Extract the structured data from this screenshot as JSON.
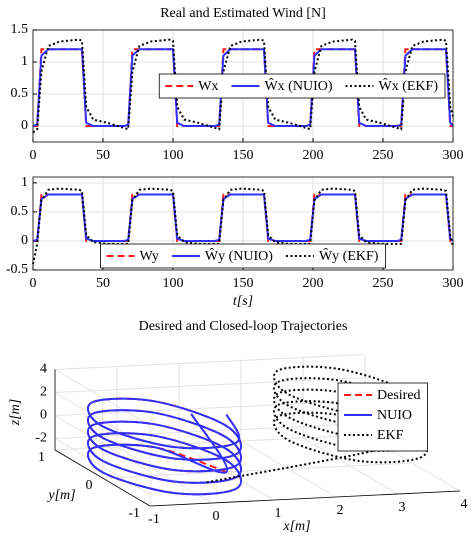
{
  "chart_data": [
    {
      "type": "line",
      "title": "Real and Estimated Wind [N]",
      "x": [
        0,
        3,
        6,
        11,
        19,
        33,
        35,
        38,
        43,
        53,
        65,
        68,
        71,
        76,
        84,
        98,
        100,
        103,
        108,
        118,
        130,
        133,
        136,
        141,
        149,
        163,
        165,
        168,
        173,
        183,
        195,
        198,
        201,
        206,
        214,
        228,
        230,
        233,
        238,
        248,
        260,
        263,
        266,
        271,
        279,
        293,
        295,
        298,
        300
      ],
      "series": [
        {
          "name": "Wx",
          "color": "#ff1a1a",
          "linestyle": "dashed",
          "values": [
            0,
            0,
            1.2,
            1.2,
            1.2,
            1.2,
            1.2,
            0,
            0,
            0,
            0,
            0,
            1.2,
            1.2,
            1.2,
            1.2,
            1.2,
            0,
            0,
            0,
            0,
            0,
            1.2,
            1.2,
            1.2,
            1.2,
            1.2,
            0,
            0,
            0,
            0,
            0,
            1.2,
            1.2,
            1.2,
            1.2,
            1.2,
            0,
            0,
            0,
            0,
            0,
            1.2,
            1.2,
            1.2,
            1.2,
            1.2,
            0,
            0
          ]
        },
        {
          "name": "Ŵx (NUIO)",
          "color": "#3030ff",
          "linestyle": "solid",
          "values": [
            0,
            0.02,
            1.1,
            1.2,
            1.2,
            1.2,
            1.2,
            0.05,
            0,
            0,
            0,
            0.02,
            1.1,
            1.2,
            1.2,
            1.2,
            1.2,
            0.05,
            0,
            0,
            0,
            0.02,
            1.1,
            1.2,
            1.2,
            1.2,
            1.2,
            0.05,
            0,
            0,
            0,
            0.02,
            1.1,
            1.2,
            1.2,
            1.2,
            1.2,
            0.05,
            0,
            0,
            0,
            0.02,
            1.1,
            1.2,
            1.2,
            1.2,
            1.2,
            0.05,
            0
          ]
        },
        {
          "name": "Ŵx (EKF)",
          "color": "#000000",
          "linestyle": "dotted",
          "values": [
            -0.1,
            -0.05,
            0.85,
            1.25,
            1.32,
            1.35,
            1.33,
            0.3,
            0.1,
            0.05,
            -0.03,
            -0.05,
            0.85,
            1.25,
            1.32,
            1.35,
            1.33,
            0.3,
            0.1,
            0.05,
            -0.03,
            -0.05,
            0.85,
            1.25,
            1.32,
            1.35,
            1.33,
            0.3,
            0.1,
            0.05,
            -0.03,
            -0.05,
            0.85,
            1.25,
            1.32,
            1.35,
            1.33,
            0.3,
            0.1,
            0.05,
            -0.03,
            -0.05,
            0.85,
            1.25,
            1.32,
            1.35,
            1.33,
            0.3,
            0.15
          ]
        }
      ],
      "xlim": [
        0,
        300
      ],
      "xticks": [
        0,
        50,
        100,
        150,
        200,
        250,
        300
      ],
      "ylim": [
        -0.25,
        1.5
      ],
      "yticks": [
        0,
        0.5,
        1,
        1.5
      ],
      "grid": true,
      "legend": "center right"
    },
    {
      "type": "line",
      "xlabel": "t[s]",
      "x": [
        0,
        3,
        6,
        11,
        19,
        33,
        35,
        38,
        43,
        53,
        65,
        68,
        71,
        76,
        84,
        98,
        100,
        103,
        108,
        118,
        130,
        133,
        136,
        141,
        149,
        163,
        165,
        168,
        173,
        183,
        195,
        198,
        201,
        206,
        214,
        228,
        230,
        233,
        238,
        248,
        260,
        263,
        266,
        271,
        279,
        293,
        295,
        298,
        300
      ],
      "series": [
        {
          "name": "Wy",
          "color": "#ff1a1a",
          "linestyle": "dashed",
          "values": [
            0,
            0,
            0.8,
            0.8,
            0.8,
            0.8,
            0.8,
            0,
            0,
            0,
            0,
            0,
            0.8,
            0.8,
            0.8,
            0.8,
            0.8,
            0,
            0,
            0,
            0,
            0,
            0.8,
            0.8,
            0.8,
            0.8,
            0.8,
            0,
            0,
            0,
            0,
            0,
            0.8,
            0.8,
            0.8,
            0.8,
            0.8,
            0,
            0,
            0,
            0,
            0,
            0.8,
            0.8,
            0.8,
            0.8,
            0.8,
            0,
            0
          ]
        },
        {
          "name": "Ŵy (NUIO)",
          "color": "#3030ff",
          "linestyle": "solid",
          "values": [
            0,
            0.02,
            0.72,
            0.8,
            0.8,
            0.8,
            0.8,
            0.04,
            0,
            0,
            0,
            0.02,
            0.72,
            0.8,
            0.8,
            0.8,
            0.8,
            0.04,
            0,
            0,
            0,
            0.02,
            0.72,
            0.8,
            0.8,
            0.8,
            0.8,
            0.04,
            0,
            0,
            0,
            0.02,
            0.72,
            0.8,
            0.8,
            0.8,
            0.8,
            0.04,
            0,
            0,
            0,
            0.02,
            0.72,
            0.8,
            0.8,
            0.8,
            0.8,
            0.04,
            0
          ]
        },
        {
          "name": "Ŵy (EKF)",
          "color": "#000000",
          "linestyle": "dotted",
          "values": [
            -0.4,
            -0.05,
            0.7,
            0.88,
            0.9,
            0.88,
            0.86,
            0.1,
            -0.02,
            -0.05,
            -0.05,
            -0.05,
            0.7,
            0.88,
            0.9,
            0.88,
            0.86,
            0.1,
            -0.02,
            -0.05,
            -0.05,
            -0.05,
            0.7,
            0.88,
            0.9,
            0.88,
            0.86,
            0.1,
            -0.02,
            -0.05,
            -0.05,
            -0.05,
            0.7,
            0.88,
            0.9,
            0.88,
            0.86,
            0.1,
            -0.02,
            -0.05,
            -0.05,
            -0.05,
            0.7,
            0.88,
            0.9,
            0.88,
            0.86,
            0.1,
            -0.1
          ]
        }
      ],
      "xlim": [
        0,
        300
      ],
      "xticks": [
        0,
        50,
        100,
        150,
        200,
        250,
        300
      ],
      "ylim": [
        -0.5,
        1.1
      ],
      "yticks": [
        -0.5,
        0,
        0.5,
        1
      ],
      "grid": true,
      "legend": "lower center"
    },
    {
      "type": "line3d",
      "title": "Desired and Closed-loop Trajectories",
      "xlabel": "x[m]",
      "ylabel": "y[m]",
      "zlabel": "z[m]",
      "series": [
        {
          "name": "Desired",
          "color": "#ff1a1a",
          "linestyle": "dashed",
          "x": [
            1,
            0.5,
            -0.5,
            -1,
            -0.5,
            0.5,
            1,
            0.5,
            -0.5,
            -1,
            -0.5,
            0.5,
            1,
            0.5,
            -0.5,
            -1,
            -0.5,
            0.5,
            1,
            0.5,
            -0.5,
            -1,
            -0.5,
            0.5,
            1,
            0.5,
            -0.5,
            -1,
            -0.5,
            0.5,
            1
          ],
          "y": [
            0,
            0.87,
            0.87,
            0,
            -0.87,
            -0.87,
            0,
            0.87,
            0.87,
            0,
            -0.87,
            -0.87,
            0,
            0.87,
            0.87,
            0,
            -0.87,
            -0.87,
            0,
            0.87,
            0.87,
            0,
            -0.87,
            -0.87,
            0,
            0.87,
            0.87,
            0,
            -0.87,
            -0.87,
            0
          ],
          "z": [
            -3,
            -2.83,
            -2.67,
            -2.5,
            -2.33,
            -2.17,
            -2,
            -1.83,
            -1.67,
            -1.5,
            -1.33,
            -1.17,
            -1,
            -0.83,
            -0.67,
            -0.5,
            -0.33,
            -0.17,
            0,
            0.17,
            0.33,
            0.5,
            0.67,
            0.83,
            1,
            1.17,
            1.33,
            1.5,
            1.67,
            1.83,
            2
          ]
        },
        {
          "name": "NUIO",
          "color": "#3030ff",
          "linestyle": "solid",
          "x": [
            0.2,
            1,
            0.5,
            -0.5,
            -1,
            -0.5,
            0.5,
            1,
            0.5,
            -0.5,
            -1,
            -0.5,
            0.5,
            1,
            0.5,
            -0.5,
            -1,
            -0.5,
            0.5,
            1,
            0.5,
            -0.5,
            -1,
            -0.5,
            0.5,
            1,
            0.5,
            -0.5,
            -1,
            -0.5,
            0.5,
            1
          ],
          "y": [
            -0.3,
            0,
            0.87,
            0.87,
            0,
            -0.87,
            -0.87,
            0,
            0.87,
            0.87,
            0,
            -0.87,
            -0.87,
            0,
            0.87,
            0.87,
            0,
            -0.87,
            -0.87,
            0,
            0.87,
            0.87,
            0,
            -0.87,
            -0.87,
            0,
            0.87,
            0.87,
            0,
            -0.87,
            -0.87,
            0
          ],
          "z": [
            3,
            -3,
            -2.83,
            -2.67,
            -2.5,
            -2.33,
            -2.17,
            -2,
            -1.83,
            -1.67,
            -1.5,
            -1.33,
            -1.17,
            -1,
            -0.83,
            -0.67,
            -0.5,
            -0.33,
            -0.17,
            0,
            0.17,
            0.33,
            0.5,
            0.67,
            0.83,
            1,
            1.17,
            1.33,
            1.5,
            1.67,
            1.83,
            2
          ]
        },
        {
          "name": "EKF",
          "color": "#000000",
          "linestyle": "dotted",
          "x": [
            0.3,
            4,
            3.5,
            2.5,
            2,
            2.5,
            3.5,
            4,
            3.5,
            2.5,
            2,
            2.5,
            3.5,
            4,
            3.5,
            2.5,
            2,
            2.5,
            3.5,
            4,
            3.5,
            2.5,
            2,
            2.5,
            3.5,
            4,
            3.5,
            2.5,
            2,
            2.5,
            3.5,
            4
          ],
          "y": [
            -0.5,
            0,
            0.87,
            0.87,
            0,
            -0.87,
            -0.87,
            0,
            0.87,
            0.87,
            0,
            -0.87,
            -0.87,
            0,
            0.87,
            0.87,
            0,
            -0.87,
            -0.87,
            0,
            0.87,
            0.87,
            0,
            -0.87,
            -0.87,
            0,
            0.87,
            0.87,
            0,
            -0.87,
            -0.87,
            0
          ],
          "z": [
            -2.5,
            -1,
            -0.83,
            -0.67,
            -0.5,
            -0.33,
            -0.17,
            0,
            0.17,
            0.33,
            0.5,
            0.67,
            0.83,
            1,
            1.17,
            1.33,
            1.5,
            1.67,
            1.83,
            2,
            2.17,
            2.33,
            2.5,
            2.67,
            2.83,
            3,
            3.17,
            3.33,
            3.5,
            3.67,
            3.83,
            4
          ]
        }
      ],
      "xlim": [
        -1,
        4
      ],
      "xticks": [
        -1,
        0,
        1,
        2,
        3,
        4
      ],
      "ylim": [
        -1,
        1
      ],
      "yticks": [
        -1,
        0,
        1
      ],
      "zlim": [
        -3,
        4
      ],
      "zticks": [
        -2,
        0,
        2,
        4
      ],
      "grid": true,
      "legend": "right"
    }
  ]
}
